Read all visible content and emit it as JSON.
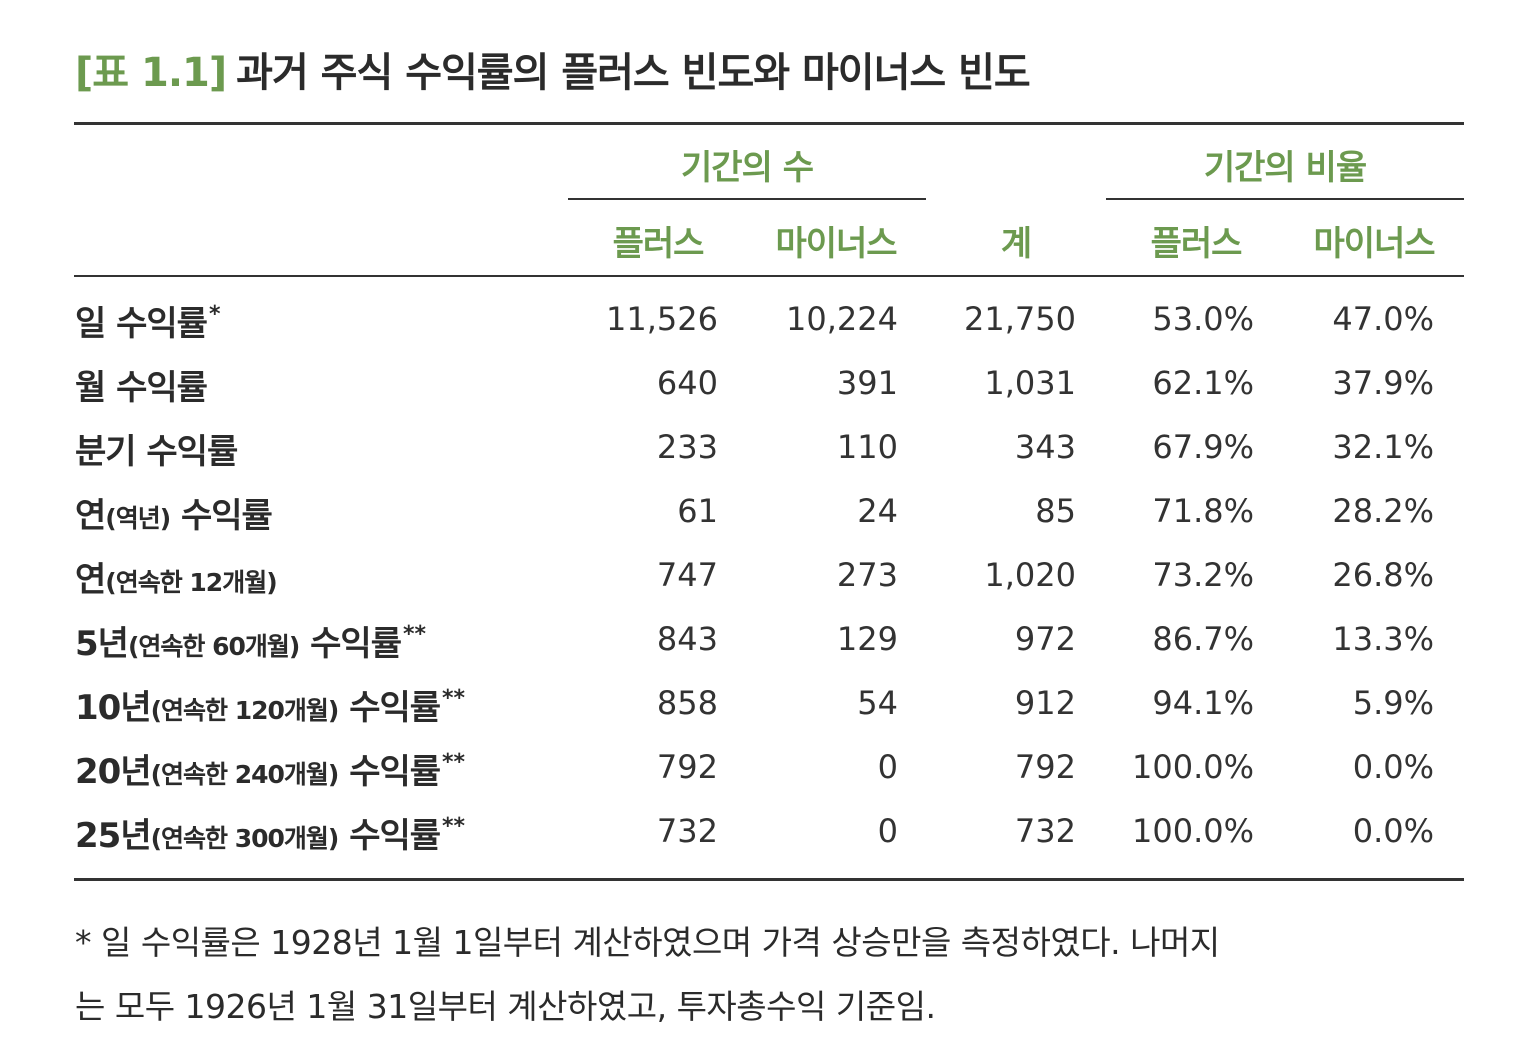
{
  "title": {
    "label": "[표 1.1]",
    "text": "과거 주식 수익률의 플러스 빈도와 마이너스 빈도"
  },
  "header": {
    "group1": "기간의 수",
    "group2": "기간의 비율",
    "cols": [
      "플러스",
      "마이너스",
      "계",
      "플러스",
      "마이너스"
    ]
  },
  "rows": [
    {
      "main": "일 수익률",
      "sub": "",
      "main2": "",
      "mark": "*",
      "values": [
        "11,526",
        "10,224",
        "21,750",
        "53.0%",
        "47.0%"
      ]
    },
    {
      "main": "월 수익률",
      "sub": "",
      "main2": "",
      "mark": "",
      "values": [
        "640",
        "391",
        "1,031",
        "62.1%",
        "37.9%"
      ]
    },
    {
      "main": "분기 수익률",
      "sub": "",
      "main2": "",
      "mark": "",
      "values": [
        "233",
        "110",
        "343",
        "67.9%",
        "32.1%"
      ]
    },
    {
      "main": "연",
      "sub": "(역년)",
      "main2": " 수익률",
      "mark": "",
      "values": [
        "61",
        "24",
        "85",
        "71.8%",
        "28.2%"
      ]
    },
    {
      "main": "연",
      "sub": "(연속한 12개월)",
      "main2": "",
      "mark": "",
      "values": [
        "747",
        "273",
        "1,020",
        "73.2%",
        "26.8%"
      ]
    },
    {
      "main": "5년",
      "sub": "(연속한 60개월)",
      "main2": " 수익률",
      "mark": "**",
      "values": [
        "843",
        "129",
        "972",
        "86.7%",
        "13.3%"
      ]
    },
    {
      "main": "10년",
      "sub": "(연속한 120개월)",
      "main2": " 수익률",
      "mark": "**",
      "values": [
        "858",
        "54",
        "912",
        "94.1%",
        "5.9%"
      ]
    },
    {
      "main": "20년",
      "sub": "(연속한 240개월)",
      "main2": " 수익률",
      "mark": "**",
      "values": [
        "792",
        "0",
        "792",
        "100.0%",
        "0.0%"
      ]
    },
    {
      "main": "25년",
      "sub": "(연속한 300개월)",
      "main2": " 수익률",
      "mark": "**",
      "values": [
        "732",
        "0",
        "732",
        "100.0%",
        "0.0%"
      ]
    }
  ],
  "footnote": {
    "line1": "* 일 수익률은 1928년 1월 1일부터 계산하였으며 가격 상승만을 측정하였다. 나머지",
    "line2": "는 모두 1926년 1월 31일부터 계산하였고, 투자총수익 기준임."
  }
}
